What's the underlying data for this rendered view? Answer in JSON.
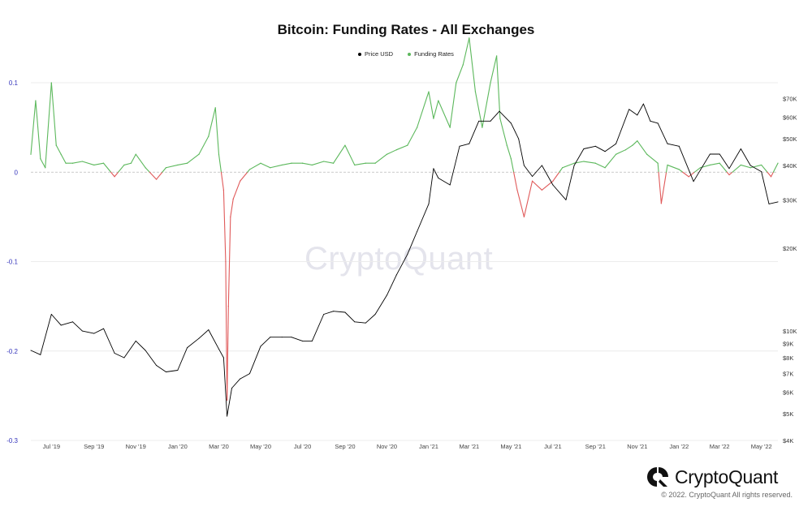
{
  "chart_data": {
    "type": "line",
    "title": "Bitcoin: Funding Rates - All Exchanges",
    "legend_position": "top",
    "grid": true,
    "series": [
      {
        "name": "Price USD",
        "axis": "right",
        "scale": "log",
        "color": "#000000",
        "x": [
          "2019-06-01",
          "2019-06-15",
          "2019-07-01",
          "2019-07-15",
          "2019-08-01",
          "2019-08-15",
          "2019-09-01",
          "2019-09-15",
          "2019-10-01",
          "2019-10-15",
          "2019-11-01",
          "2019-11-15",
          "2019-12-01",
          "2019-12-15",
          "2020-01-01",
          "2020-01-15",
          "2020-02-01",
          "2020-02-15",
          "2020-03-01",
          "2020-03-08",
          "2020-03-13",
          "2020-03-20",
          "2020-04-01",
          "2020-04-15",
          "2020-05-01",
          "2020-05-15",
          "2020-06-01",
          "2020-06-15",
          "2020-07-01",
          "2020-07-15",
          "2020-08-01",
          "2020-08-15",
          "2020-09-01",
          "2020-09-15",
          "2020-10-01",
          "2020-10-15",
          "2020-11-01",
          "2020-11-15",
          "2020-12-01",
          "2020-12-15",
          "2021-01-01",
          "2021-01-08",
          "2021-01-15",
          "2021-02-01",
          "2021-02-15",
          "2021-03-01",
          "2021-03-15",
          "2021-04-01",
          "2021-04-14",
          "2021-05-01",
          "2021-05-12",
          "2021-05-20",
          "2021-06-01",
          "2021-06-15",
          "2021-07-01",
          "2021-07-20",
          "2021-08-01",
          "2021-08-15",
          "2021-09-01",
          "2021-09-15",
          "2021-10-01",
          "2021-10-20",
          "2021-11-01",
          "2021-11-10",
          "2021-11-20",
          "2021-12-01",
          "2021-12-15",
          "2022-01-01",
          "2022-01-22",
          "2022-02-01",
          "2022-02-15",
          "2022-03-01",
          "2022-03-15",
          "2022-04-01",
          "2022-04-15",
          "2022-05-01",
          "2022-05-12",
          "2022-05-25"
        ],
        "values": [
          8500,
          8200,
          11500,
          10500,
          10800,
          10000,
          9800,
          10200,
          8300,
          8000,
          9200,
          8500,
          7500,
          7100,
          7200,
          8700,
          9400,
          10100,
          8600,
          8000,
          4900,
          6200,
          6700,
          7000,
          8800,
          9500,
          9500,
          9500,
          9200,
          9200,
          11500,
          11800,
          11700,
          10800,
          10700,
          11500,
          13500,
          16000,
          19000,
          23000,
          29000,
          39000,
          36000,
          34000,
          47000,
          48000,
          58000,
          58000,
          63000,
          57000,
          50000,
          40000,
          36500,
          40000,
          34000,
          30000,
          40000,
          46000,
          47000,
          45000,
          48000,
          64000,
          61000,
          67000,
          58000,
          57000,
          48000,
          47000,
          35000,
          38500,
          44000,
          44000,
          39000,
          46000,
          40000,
          38000,
          29000,
          29500
        ]
      },
      {
        "name": "Funding Rates",
        "axis": "left",
        "color_positive": "#5cb85c",
        "color_negative": "#e05a5a",
        "x": [
          "2019-06-01",
          "2019-06-08",
          "2019-06-15",
          "2019-06-22",
          "2019-07-01",
          "2019-07-08",
          "2019-07-15",
          "2019-07-22",
          "2019-08-01",
          "2019-08-15",
          "2019-09-01",
          "2019-09-15",
          "2019-10-01",
          "2019-10-15",
          "2019-10-25",
          "2019-11-01",
          "2019-11-15",
          "2019-12-01",
          "2019-12-15",
          "2020-01-01",
          "2020-01-15",
          "2020-02-01",
          "2020-02-15",
          "2020-02-25",
          "2020-03-01",
          "2020-03-08",
          "2020-03-11",
          "2020-03-13",
          "2020-03-15",
          "2020-03-18",
          "2020-03-22",
          "2020-04-01",
          "2020-04-15",
          "2020-05-01",
          "2020-05-15",
          "2020-06-01",
          "2020-06-15",
          "2020-07-01",
          "2020-07-15",
          "2020-08-01",
          "2020-08-15",
          "2020-09-01",
          "2020-09-15",
          "2020-10-01",
          "2020-10-15",
          "2020-11-01",
          "2020-11-15",
          "2020-12-01",
          "2020-12-15",
          "2021-01-01",
          "2021-01-08",
          "2021-01-15",
          "2021-02-01",
          "2021-02-10",
          "2021-02-20",
          "2021-03-01",
          "2021-03-10",
          "2021-03-20",
          "2021-04-01",
          "2021-04-10",
          "2021-04-15",
          "2021-04-25",
          "2021-05-01",
          "2021-05-10",
          "2021-05-20",
          "2021-06-01",
          "2021-06-15",
          "2021-07-01",
          "2021-07-15",
          "2021-08-01",
          "2021-08-15",
          "2021-09-01",
          "2021-09-15",
          "2021-10-01",
          "2021-10-15",
          "2021-10-25",
          "2021-11-01",
          "2021-11-15",
          "2021-12-01",
          "2021-12-06",
          "2021-12-15",
          "2022-01-01",
          "2022-01-15",
          "2022-02-01",
          "2022-02-15",
          "2022-03-01",
          "2022-03-15",
          "2022-04-01",
          "2022-04-15",
          "2022-05-01",
          "2022-05-15",
          "2022-05-25"
        ],
        "values": [
          0.02,
          0.08,
          0.015,
          0.005,
          0.1,
          0.03,
          0.02,
          0.01,
          0.01,
          0.012,
          0.008,
          0.01,
          -0.005,
          0.008,
          0.01,
          0.02,
          0.005,
          -0.008,
          0.005,
          0.008,
          0.01,
          0.02,
          0.04,
          0.072,
          0.02,
          -0.02,
          -0.1,
          -0.255,
          -0.15,
          -0.05,
          -0.03,
          -0.01,
          0.003,
          0.01,
          0.005,
          0.008,
          0.01,
          0.01,
          0.008,
          0.012,
          0.01,
          0.03,
          0.008,
          0.01,
          0.01,
          0.02,
          0.025,
          0.03,
          0.05,
          0.09,
          0.06,
          0.08,
          0.05,
          0.1,
          0.12,
          0.15,
          0.09,
          0.05,
          0.1,
          0.13,
          0.06,
          0.03,
          0.015,
          -0.02,
          -0.05,
          -0.01,
          -0.02,
          -0.01,
          0.005,
          0.01,
          0.012,
          0.01,
          0.005,
          0.02,
          0.025,
          0.03,
          0.035,
          0.02,
          0.01,
          -0.035,
          0.008,
          0.003,
          -0.005,
          0.005,
          0.008,
          0.01,
          -0.003,
          0.008,
          0.005,
          0.008,
          -0.005,
          0.01
        ]
      }
    ],
    "left_axis": {
      "min": -0.3,
      "max": 0.1,
      "ticks": [
        "0.1",
        "0",
        "-0.1",
        "-0.2",
        "-0.3"
      ]
    },
    "right_axis": {
      "scale": "log",
      "min": 4000,
      "max": 80000,
      "tick_values": [
        70000,
        60000,
        50000,
        40000,
        30000,
        20000,
        10000,
        9000,
        8000,
        7000,
        6000,
        5000,
        4000
      ],
      "tick_labels": [
        "$70K",
        "$60K",
        "$50K",
        "$40K",
        "$30K",
        "$20K",
        "$10K",
        "$9K",
        "$8K",
        "$7K",
        "$6K",
        "$5K",
        "$4K"
      ]
    },
    "x_axis": {
      "min": "2019-06-01",
      "max": "2022-05-25",
      "tick_values": [
        "2019-07-01",
        "2019-09-01",
        "2019-11-01",
        "2020-01-01",
        "2020-03-01",
        "2020-05-01",
        "2020-07-01",
        "2020-09-01",
        "2020-11-01",
        "2021-01-01",
        "2021-03-01",
        "2021-05-01",
        "2021-07-01",
        "2021-09-01",
        "2021-11-01",
        "2022-01-01",
        "2022-03-01",
        "2022-05-01"
      ],
      "tick_labels": [
        "Jul '19",
        "Sep '19",
        "Nov '19",
        "Jan '20",
        "Mar '20",
        "May '20",
        "Jul '20",
        "Sep '20",
        "Nov '20",
        "Jan '21",
        "Mar '21",
        "May '21",
        "Jul '21",
        "Sep '21",
        "Nov '21",
        "Jan '22",
        "Mar '22",
        "May '22"
      ]
    }
  },
  "watermark": "CryptoQuant",
  "brand": {
    "name": "CryptoQuant"
  },
  "copyright": "© 2022. CryptoQuant All rights reserved."
}
